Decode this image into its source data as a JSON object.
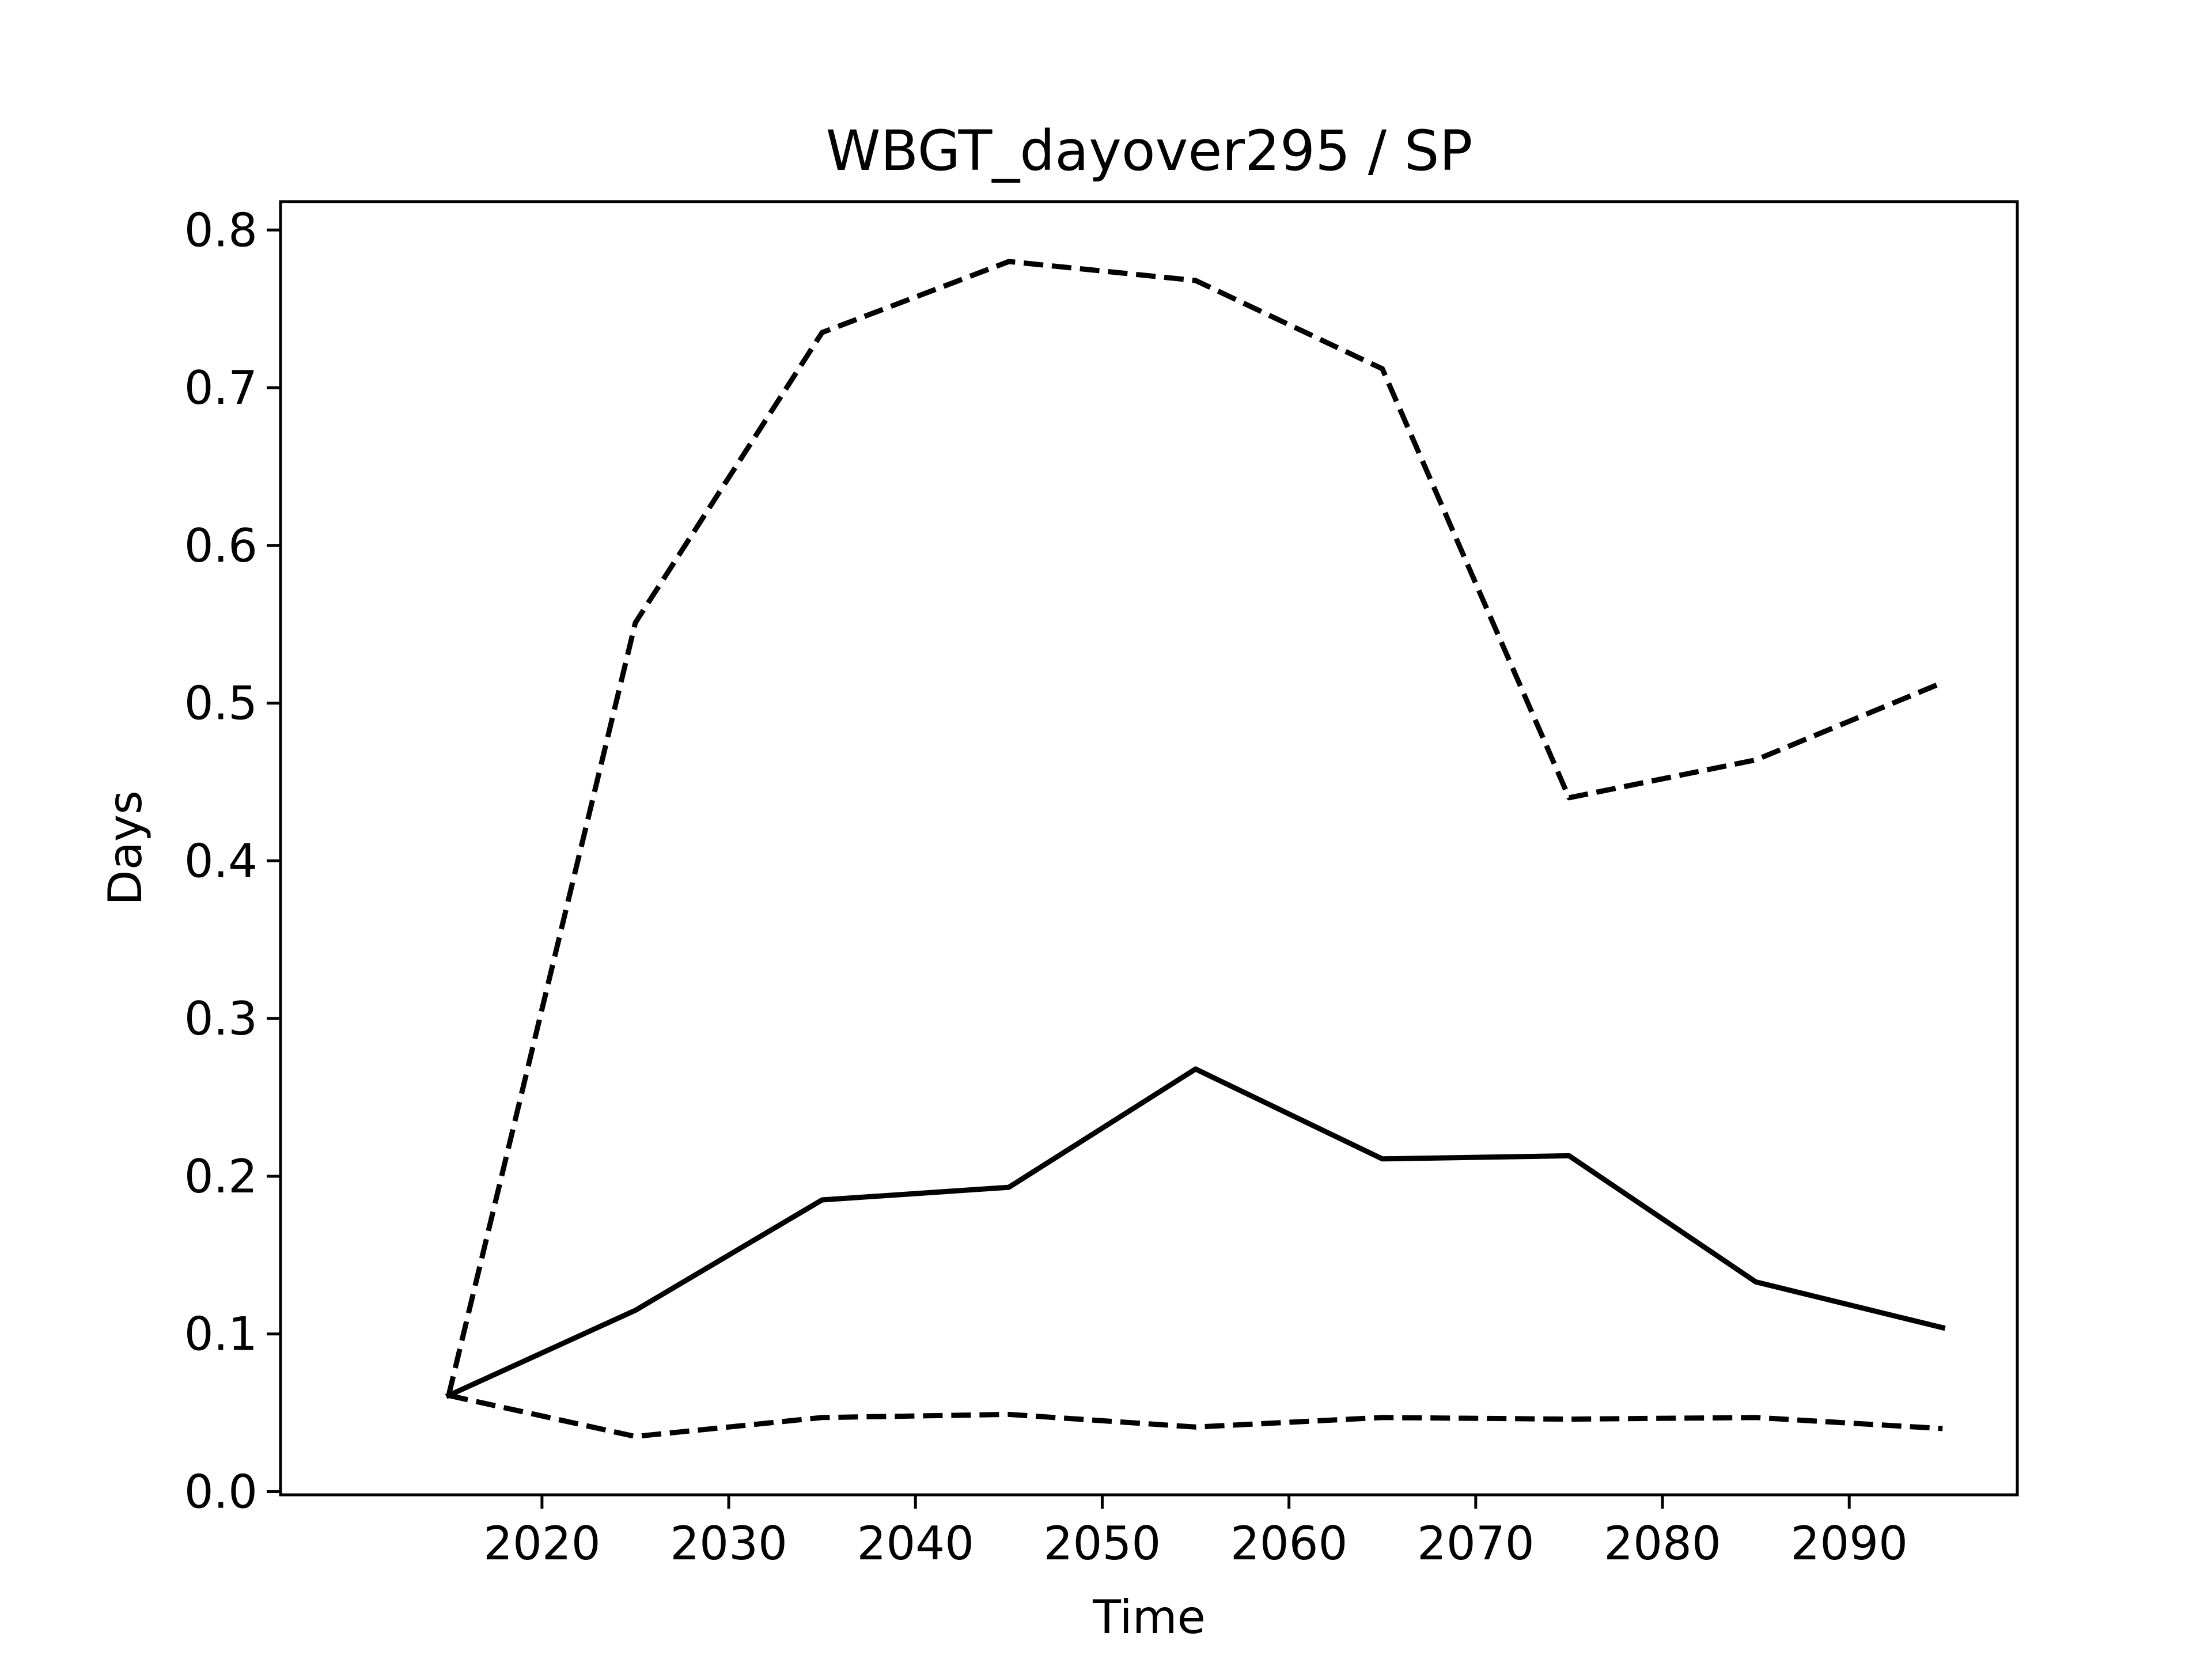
{
  "chart_data": {
    "type": "line",
    "title": "WBGT_dayover295 / SP",
    "xlabel": "Time",
    "ylabel": "Days",
    "x": [
      2015,
      2025,
      2035,
      2045,
      2055,
      2065,
      2075,
      2085,
      2095
    ],
    "xlim": [
      2006,
      2099
    ],
    "ylim": [
      -0.002,
      0.818
    ],
    "xticks": [
      2020,
      2030,
      2040,
      2050,
      2060,
      2070,
      2080,
      2090
    ],
    "yticks": [
      0.0,
      0.1,
      0.2,
      0.3,
      0.4,
      0.5,
      0.6,
      0.7,
      0.8
    ],
    "ytick_labels": [
      "0.0",
      "0.1",
      "0.2",
      "0.3",
      "0.4",
      "0.5",
      "0.6",
      "0.7",
      "0.8"
    ],
    "grid": false,
    "legend": "none",
    "series": [
      {
        "style": "dashed",
        "color": "#000000",
        "values": [
          0.061,
          0.551,
          0.735,
          0.78,
          0.768,
          0.712,
          0.44,
          0.464,
          0.513
        ]
      },
      {
        "style": "solid",
        "color": "#000000",
        "values": [
          0.061,
          0.115,
          0.185,
          0.193,
          0.268,
          0.211,
          0.213,
          0.133,
          0.104
        ]
      },
      {
        "style": "dashed",
        "color": "#000000",
        "values": [
          0.061,
          0.035,
          0.047,
          0.049,
          0.041,
          0.047,
          0.046,
          0.047,
          0.04
        ]
      }
    ]
  }
}
